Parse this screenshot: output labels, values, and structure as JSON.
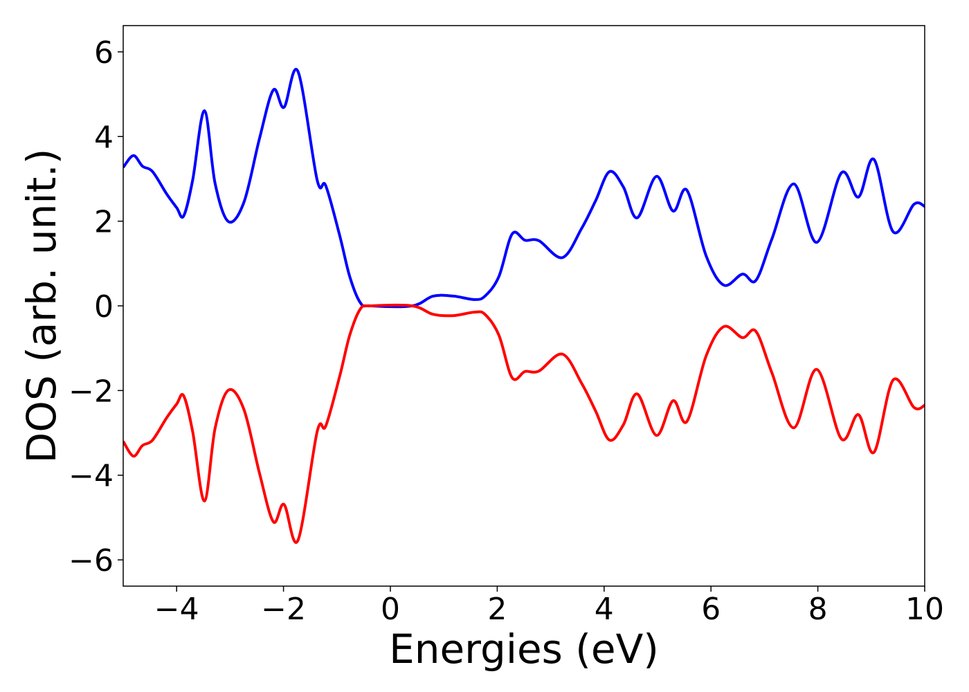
{
  "chart_data": {
    "type": "line",
    "xlabel": "Energies (eV)",
    "ylabel": "DOS (arb. unit.)",
    "x": [
      -5,
      -4.81,
      -4.64,
      -4.45,
      -4.19,
      -4.0,
      -3.87,
      -3.7,
      -3.48,
      -3.28,
      -3.03,
      -2.74,
      -2.45,
      -2.19,
      -1.99,
      -1.73,
      -1.37,
      -1.21,
      -0.95,
      -0.76,
      -0.56,
      -0.37,
      0.41,
      0.8,
      1.18,
      1.57,
      1.77,
      2.03,
      2.28,
      2.52,
      2.78,
      3.22,
      3.58,
      3.84,
      4.1,
      4.36,
      4.62,
      4.98,
      5.29,
      5.55,
      5.91,
      6.24,
      6.59,
      6.84,
      7.14,
      7.55,
      7.98,
      8.44,
      8.76,
      9.05,
      9.41,
      9.8,
      10
    ],
    "series": [
      {
        "color": "#0000ff",
        "values": [
          3.27,
          3.55,
          3.3,
          3.17,
          2.65,
          2.32,
          2.12,
          2.97,
          4.61,
          2.89,
          1.99,
          2.45,
          3.95,
          5.1,
          4.69,
          5.54,
          2.97,
          2.84,
          1.67,
          0.69,
          0.07,
          0,
          0,
          0.23,
          0.23,
          0.15,
          0.23,
          0.69,
          1.7,
          1.55,
          1.54,
          1.14,
          1.83,
          2.48,
          3.17,
          2.81,
          2.08,
          3.06,
          2.24,
          2.73,
          1.18,
          0.49,
          0.75,
          0.6,
          1.58,
          2.88,
          1.5,
          3.14,
          2.57,
          3.46,
          1.75,
          2.4,
          2.35
        ]
      },
      {
        "color": "#ff0000",
        "values": [
          -3.2,
          -3.55,
          -3.3,
          -3.17,
          -2.65,
          -2.32,
          -2.12,
          -2.97,
          -4.61,
          -2.89,
          -1.99,
          -2.45,
          -3.95,
          -5.1,
          -4.69,
          -5.54,
          -2.97,
          -2.84,
          -1.67,
          -0.69,
          -0.07,
          0,
          0,
          -0.2,
          -0.23,
          -0.15,
          -0.2,
          -0.69,
          -1.7,
          -1.55,
          -1.54,
          -1.14,
          -1.83,
          -2.48,
          -3.17,
          -2.81,
          -2.08,
          -3.06,
          -2.24,
          -2.73,
          -1.18,
          -0.49,
          -0.75,
          -0.6,
          -1.58,
          -2.88,
          -1.5,
          -3.14,
          -2.57,
          -3.46,
          -1.75,
          -2.4,
          -2.35
        ]
      }
    ],
    "xlim": [
      -5,
      10
    ],
    "xticks": [
      {
        "value": -4,
        "label": "−4"
      },
      {
        "value": -2,
        "label": "−2"
      },
      0,
      2,
      4,
      6,
      8,
      10
    ],
    "ylim": [
      -6.62,
      6.62
    ],
    "yticks": [
      {
        "value": -6,
        "label": "−6"
      },
      {
        "value": -4,
        "label": "−4"
      },
      {
        "value": -2,
        "label": "−2"
      },
      0,
      2,
      4,
      6
    ]
  }
}
